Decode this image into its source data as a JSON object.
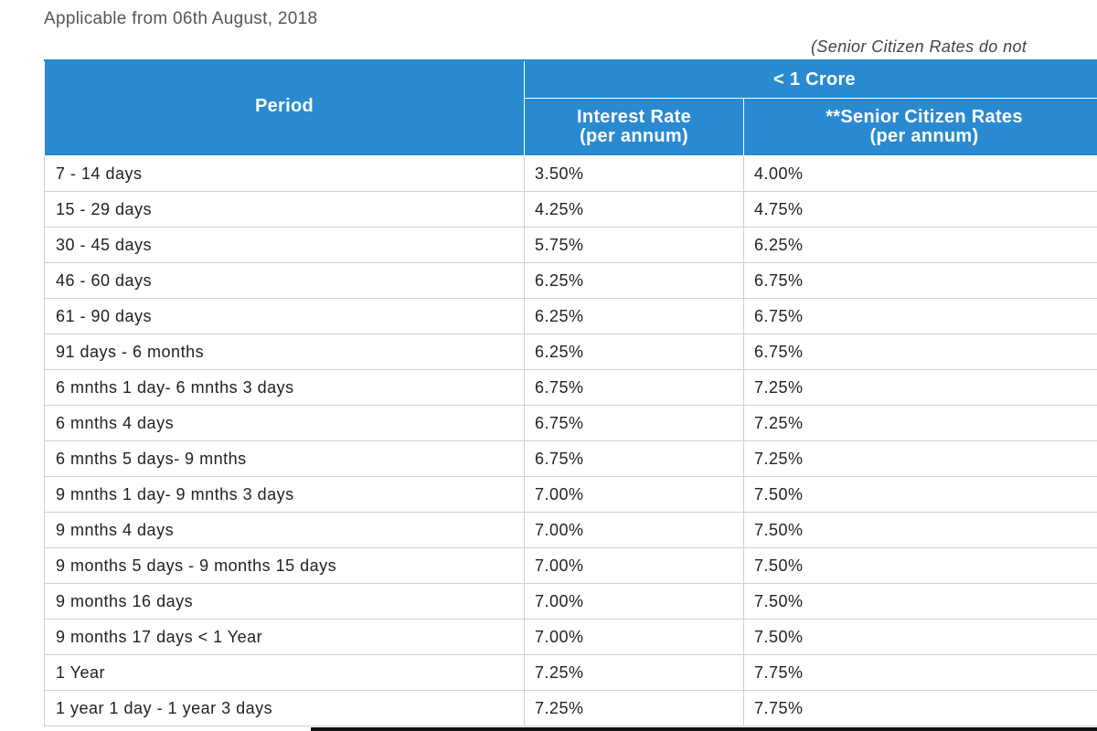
{
  "header": {
    "applicable": "Applicable from 06th August, 2018",
    "note": "(Senior Citizen Rates do not"
  },
  "table": {
    "period_header": "Period",
    "group_header": "< 1 Crore",
    "interest_rate_header": [
      "Interest Rate",
      "(per annum)"
    ],
    "senior_rate_header": [
      "**Senior Citizen Rates",
      "(per annum)"
    ],
    "rows": [
      {
        "period": "7 - 14 days",
        "rate": "3.50%",
        "senior": "4.00%"
      },
      {
        "period": "15 - 29 days",
        "rate": "4.25%",
        "senior": "4.75%"
      },
      {
        "period": "30 - 45 days",
        "rate": "5.75%",
        "senior": "6.25%"
      },
      {
        "period": "46 - 60 days",
        "rate": "6.25%",
        "senior": "6.75%"
      },
      {
        "period": "61 - 90 days",
        "rate": "6.25%",
        "senior": "6.75%"
      },
      {
        "period": "91 days - 6 months",
        "rate": "6.25%",
        "senior": "6.75%"
      },
      {
        "period": "6 mnths 1 day- 6 mnths 3 days",
        "rate": "6.75%",
        "senior": "7.25%"
      },
      {
        "period": "6 mnths 4 days",
        "rate": "6.75%",
        "senior": "7.25%"
      },
      {
        "period": "6 mnths 5 days- 9 mnths",
        "rate": "6.75%",
        "senior": "7.25%"
      },
      {
        "period": "9 mnths 1 day- 9 mnths 3 days",
        "rate": "7.00%",
        "senior": "7.50%"
      },
      {
        "period": "9 mnths 4 days",
        "rate": "7.00%",
        "senior": "7.50%"
      },
      {
        "period": "9 months 5 days - 9 months 15 days",
        "rate": "7.00%",
        "senior": "7.50%"
      },
      {
        "period": "9 months 16 days",
        "rate": "7.00%",
        "senior": "7.50%"
      },
      {
        "period": "9 months 17 days < 1 Year",
        "rate": "7.00%",
        "senior": "7.50%"
      },
      {
        "period": "1 Year",
        "rate": "7.25%",
        "senior": "7.75%"
      },
      {
        "period": "1 year 1 day - 1 year 3 days",
        "rate": "7.25%",
        "senior": "7.75%"
      }
    ]
  }
}
